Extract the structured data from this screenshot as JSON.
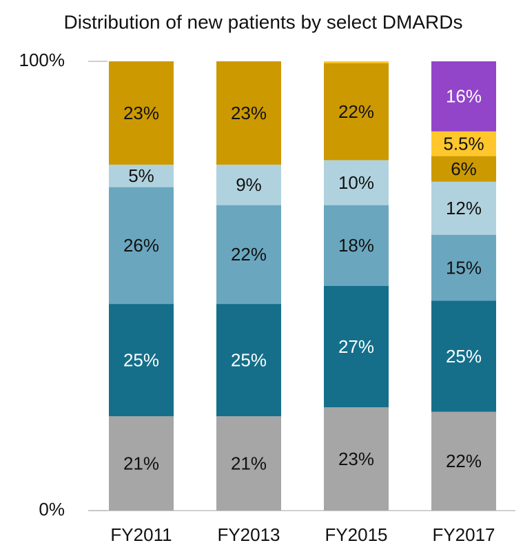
{
  "chart_data": {
    "type": "stacked_bar",
    "title": "Distribution of new patients by select DMARDs",
    "categories": [
      "FY2011",
      "FY2013",
      "FY2015",
      "FY2017"
    ],
    "ylim": [
      0,
      100
    ],
    "yticks": [
      {
        "value": 0,
        "label": "0%"
      },
      {
        "value": 100,
        "label": "100%"
      }
    ],
    "series": [
      {
        "color": "#a6a6a6",
        "values": [
          21,
          21,
          23,
          22
        ],
        "value_labels": [
          "21%",
          "21%",
          "23%",
          "22%"
        ]
      },
      {
        "color": "#156f8a",
        "values": [
          25,
          25,
          27,
          24.7
        ],
        "value_labels": [
          "25%",
          "25%",
          "27%",
          "25%"
        ]
      },
      {
        "color": "#6aa7bf",
        "values": [
          26,
          22,
          18,
          14.7
        ],
        "value_labels": [
          "26%",
          "22%",
          "18%",
          "15%"
        ]
      },
      {
        "color": "#b0d2de",
        "values": [
          5,
          9,
          10,
          11.8
        ],
        "value_labels": [
          "5%",
          "9%",
          "10%",
          "12%"
        ]
      },
      {
        "color": "#cc9900",
        "values": [
          23,
          23,
          21.6,
          5.7
        ],
        "value_labels": [
          "23%",
          "23%",
          "22%",
          "6%"
        ]
      },
      {
        "color": "#ffc72c",
        "values": [
          null,
          null,
          0.4,
          5.5
        ],
        "value_labels": [
          null,
          null,
          null,
          "5.5%"
        ]
      },
      {
        "color": "#9245c9",
        "values": [
          null,
          null,
          null,
          15.6
        ],
        "value_labels": [
          null,
          null,
          null,
          "16%"
        ]
      }
    ]
  }
}
